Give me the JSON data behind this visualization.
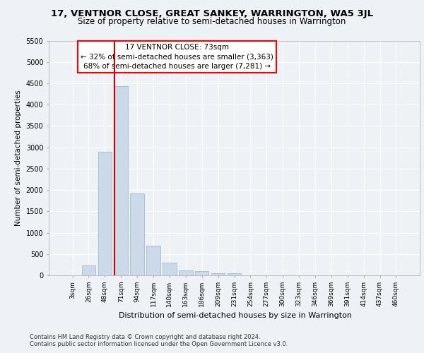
{
  "title": "17, VENTNOR CLOSE, GREAT SANKEY, WARRINGTON, WA5 3JL",
  "subtitle": "Size of property relative to semi-detached houses in Warrington",
  "xlabel": "Distribution of semi-detached houses by size in Warrington",
  "ylabel": "Number of semi-detached properties",
  "categories": [
    "3sqm",
    "26sqm",
    "48sqm",
    "71sqm",
    "94sqm",
    "117sqm",
    "140sqm",
    "163sqm",
    "186sqm",
    "209sqm",
    "231sqm",
    "254sqm",
    "277sqm",
    "300sqm",
    "323sqm",
    "346sqm",
    "369sqm",
    "391sqm",
    "414sqm",
    "437sqm",
    "460sqm"
  ],
  "values": [
    0,
    230,
    2900,
    4430,
    1920,
    700,
    300,
    110,
    100,
    55,
    55,
    0,
    0,
    0,
    0,
    0,
    0,
    0,
    0,
    0,
    0
  ],
  "bar_color": "#ccd9e8",
  "bar_edge_color": "#9ab0c8",
  "property_bin_index": 3,
  "annotation_text": "17 VENTNOR CLOSE: 73sqm\n← 32% of semi-detached houses are smaller (3,363)\n68% of semi-detached houses are larger (7,281) →",
  "ylim": [
    0,
    5500
  ],
  "yticks": [
    0,
    500,
    1000,
    1500,
    2000,
    2500,
    3000,
    3500,
    4000,
    4500,
    5000,
    5500
  ],
  "footer1": "Contains HM Land Registry data © Crown copyright and database right 2024.",
  "footer2": "Contains public sector information licensed under the Open Government Licence v3.0.",
  "bg_color": "#eef2f7",
  "plot_bg_color": "#eef2f7",
  "grid_color": "#ffffff",
  "line_color": "#cc0000",
  "title_fontsize": 9.5,
  "subtitle_fontsize": 8.5,
  "ylabel_fontsize": 7.5,
  "xlabel_fontsize": 8.0,
  "tick_fontsize": 7.0,
  "annot_fontsize": 7.5
}
